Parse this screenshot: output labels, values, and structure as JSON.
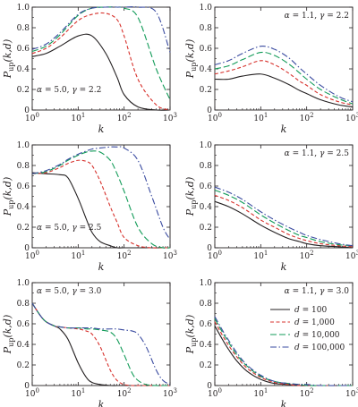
{
  "chart_data": [
    {
      "type": "line",
      "annotation": "α = 5.0, γ = 2.2",
      "annotation_placement": "bottom-left",
      "xlabel": "k",
      "ylabel": "P_up(k,d)",
      "xscale": "log",
      "xlim": [
        1,
        1000
      ],
      "ylim": [
        0,
        1
      ],
      "xticks": [
        "10⁰",
        "10¹",
        "10²",
        "10³"
      ],
      "yticks": [
        "0",
        "0.2",
        "0.4",
        "0.6",
        "0.8",
        "1.0"
      ],
      "x": [
        1,
        2,
        4,
        10,
        20,
        40,
        70,
        100,
        200,
        500,
        1000
      ],
      "series": [
        {
          "values": [
            0.52,
            0.55,
            0.62,
            0.72,
            0.72,
            0.55,
            0.32,
            0.15,
            0.03,
            0.0,
            0.0
          ]
        },
        {
          "values": [
            0.55,
            0.6,
            0.7,
            0.87,
            0.93,
            0.94,
            0.88,
            0.72,
            0.3,
            0.05,
            0.0
          ]
        },
        {
          "values": [
            0.57,
            0.62,
            0.73,
            0.92,
            0.99,
            1.0,
            1.0,
            0.99,
            0.9,
            0.4,
            0.1
          ]
        },
        {
          "values": [
            0.59,
            0.64,
            0.75,
            0.93,
            0.99,
            1.0,
            1.0,
            1.0,
            1.0,
            0.95,
            0.56
          ]
        }
      ]
    },
    {
      "type": "line",
      "annotation": "α = 1.1, γ = 2.2",
      "annotation_placement": "top-right",
      "xlabel": "k",
      "ylabel": "P_up(k,d)",
      "xscale": "log",
      "xlim": [
        1,
        1000
      ],
      "ylim": [
        0,
        1
      ],
      "xticks": [
        "10⁰",
        "10¹",
        "10²",
        "10³"
      ],
      "yticks": [
        "0",
        "0.2",
        "0.4",
        "0.6",
        "0.8",
        "1.0"
      ],
      "x": [
        1,
        2,
        4,
        10,
        20,
        40,
        70,
        100,
        200,
        500,
        1000
      ],
      "series": [
        {
          "values": [
            0.3,
            0.3,
            0.33,
            0.35,
            0.31,
            0.25,
            0.19,
            0.16,
            0.1,
            0.05,
            0.03
          ]
        },
        {
          "values": [
            0.35,
            0.38,
            0.42,
            0.48,
            0.44,
            0.36,
            0.28,
            0.24,
            0.15,
            0.08,
            0.05
          ]
        },
        {
          "values": [
            0.4,
            0.43,
            0.49,
            0.56,
            0.53,
            0.45,
            0.36,
            0.3,
            0.2,
            0.11,
            0.06
          ]
        },
        {
          "values": [
            0.44,
            0.48,
            0.55,
            0.62,
            0.59,
            0.51,
            0.41,
            0.35,
            0.24,
            0.13,
            0.08
          ]
        }
      ]
    },
    {
      "type": "line",
      "annotation": "α = 5.0, γ = 2.5",
      "annotation_placement": "bottom-left",
      "xlabel": "k",
      "ylabel": "P_up(k,d)",
      "xscale": "log",
      "xlim": [
        1,
        1000
      ],
      "ylim": [
        0,
        1
      ],
      "xticks": [
        "10⁰",
        "10¹",
        "10²",
        "10³"
      ],
      "yticks": [
        "0",
        "0.2",
        "0.4",
        "0.6",
        "0.8",
        "1.0"
      ],
      "x": [
        1,
        2,
        4,
        6,
        10,
        15,
        20,
        30,
        50,
        70,
        100,
        200,
        400,
        700,
        1000
      ],
      "series": [
        {
          "values": [
            0.73,
            0.72,
            0.71,
            0.68,
            0.48,
            0.28,
            0.15,
            0.06,
            0.02,
            0.0,
            0.0,
            0.0,
            0.0,
            0.0,
            0.0
          ]
        },
        {
          "values": [
            0.72,
            0.73,
            0.78,
            0.82,
            0.85,
            0.84,
            0.8,
            0.65,
            0.4,
            0.25,
            0.1,
            0.02,
            0.0,
            0.0,
            0.0
          ]
        },
        {
          "values": [
            0.72,
            0.74,
            0.8,
            0.85,
            0.9,
            0.93,
            0.94,
            0.93,
            0.85,
            0.72,
            0.55,
            0.2,
            0.04,
            0.0,
            0.0
          ]
        },
        {
          "values": [
            0.72,
            0.75,
            0.81,
            0.86,
            0.91,
            0.94,
            0.96,
            0.97,
            0.98,
            0.98,
            0.97,
            0.85,
            0.5,
            0.2,
            0.08
          ]
        }
      ]
    },
    {
      "type": "line",
      "annotation": "α = 1.1, γ = 2.5",
      "annotation_placement": "top-right",
      "xlabel": "k",
      "ylabel": "P_up(k,d)",
      "xscale": "log",
      "xlim": [
        1,
        1000
      ],
      "ylim": [
        0,
        1
      ],
      "xticks": [
        "10⁰",
        "10¹",
        "10²",
        "10³"
      ],
      "yticks": [
        "0",
        "0.2",
        "0.4",
        "0.6",
        "0.8",
        "1.0"
      ],
      "x": [
        1,
        2,
        4,
        10,
        20,
        40,
        70,
        100,
        200,
        500,
        1000
      ],
      "series": [
        {
          "values": [
            0.45,
            0.4,
            0.33,
            0.22,
            0.15,
            0.09,
            0.06,
            0.04,
            0.02,
            0.01,
            0.0
          ]
        },
        {
          "values": [
            0.51,
            0.46,
            0.39,
            0.27,
            0.2,
            0.13,
            0.09,
            0.07,
            0.04,
            0.02,
            0.01
          ]
        },
        {
          "values": [
            0.56,
            0.51,
            0.44,
            0.32,
            0.24,
            0.17,
            0.12,
            0.1,
            0.06,
            0.03,
            0.02
          ]
        },
        {
          "values": [
            0.59,
            0.54,
            0.47,
            0.35,
            0.27,
            0.2,
            0.15,
            0.12,
            0.08,
            0.04,
            0.02
          ]
        }
      ]
    },
    {
      "type": "line",
      "annotation": "α = 5.0, γ = 3.0",
      "annotation_placement": "top-left",
      "xlabel": "k",
      "ylabel": "P_up(k,d)",
      "xscale": "log",
      "xlim": [
        1,
        1000
      ],
      "ylim": [
        0,
        1
      ],
      "xticks": [
        "10⁰",
        "10¹",
        "10²",
        "10³"
      ],
      "yticks": [
        "0",
        "0.2",
        "0.4",
        "0.6",
        "0.8",
        "1.0"
      ],
      "x": [
        1,
        1.5,
        2,
        3,
        4,
        6,
        10,
        15,
        20,
        30,
        50,
        70,
        100,
        150,
        200,
        300,
        500,
        700,
        1000
      ],
      "series": [
        {
          "values": [
            0.8,
            0.68,
            0.62,
            0.58,
            0.55,
            0.45,
            0.22,
            0.08,
            0.03,
            0.01,
            0.0,
            0.0,
            0.0,
            0.0,
            0.0,
            0.0,
            0.0,
            0.0,
            0.0
          ]
        },
        {
          "values": [
            0.8,
            0.68,
            0.62,
            0.58,
            0.57,
            0.56,
            0.55,
            0.53,
            0.5,
            0.38,
            0.15,
            0.05,
            0.01,
            0.0,
            0.0,
            0.0,
            0.0,
            0.0,
            0.0
          ]
        },
        {
          "values": [
            0.8,
            0.68,
            0.62,
            0.58,
            0.57,
            0.56,
            0.56,
            0.55,
            0.55,
            0.54,
            0.52,
            0.45,
            0.3,
            0.12,
            0.05,
            0.01,
            0.0,
            0.0,
            0.0
          ]
        },
        {
          "values": [
            0.8,
            0.68,
            0.62,
            0.58,
            0.57,
            0.56,
            0.56,
            0.56,
            0.56,
            0.55,
            0.55,
            0.55,
            0.54,
            0.53,
            0.5,
            0.38,
            0.15,
            0.05,
            0.01
          ]
        }
      ]
    },
    {
      "type": "line",
      "annotation": "α = 1.1, γ = 3.0",
      "annotation_placement": "top-right",
      "xlabel": "k",
      "ylabel": "P_up(k,d)",
      "xscale": "log",
      "xlim": [
        1,
        1000
      ],
      "ylim": [
        0,
        1
      ],
      "xticks": [
        "10⁰",
        "10¹",
        "10²",
        "10³"
      ],
      "yticks": [
        "0",
        "0.2",
        "0.4",
        "0.6",
        "0.8",
        "1.0"
      ],
      "x": [
        1,
        1.5,
        2,
        3,
        5,
        10,
        20,
        40,
        70,
        100,
        200,
        500,
        1000
      ],
      "series": [
        {
          "name": "d = 100",
          "values": [
            0.58,
            0.44,
            0.35,
            0.24,
            0.14,
            0.06,
            0.02,
            0.01,
            0.0,
            0.0,
            0.0,
            0.0,
            0.0
          ]
        },
        {
          "name": "d = 1,000",
          "values": [
            0.62,
            0.48,
            0.39,
            0.28,
            0.17,
            0.08,
            0.03,
            0.01,
            0.0,
            0.0,
            0.0,
            0.0,
            0.0
          ]
        },
        {
          "name": "d = 10,000",
          "values": [
            0.65,
            0.51,
            0.42,
            0.3,
            0.19,
            0.09,
            0.04,
            0.02,
            0.01,
            0.0,
            0.0,
            0.0,
            0.0
          ]
        },
        {
          "name": "d = 100,000",
          "values": [
            0.67,
            0.53,
            0.44,
            0.32,
            0.2,
            0.1,
            0.04,
            0.02,
            0.01,
            0.01,
            0.0,
            0.0,
            0.0
          ]
        }
      ],
      "legend_placement": "right"
    }
  ],
  "styles": {
    "series_colors": [
      "#231f20",
      "#d7312c",
      "#129b58",
      "#3a4ba0"
    ],
    "series_dashes": [
      "",
      "4 2.5",
      "7 3",
      "7 2.5 1.5 2.5"
    ],
    "axis_color": "#231f20"
  }
}
